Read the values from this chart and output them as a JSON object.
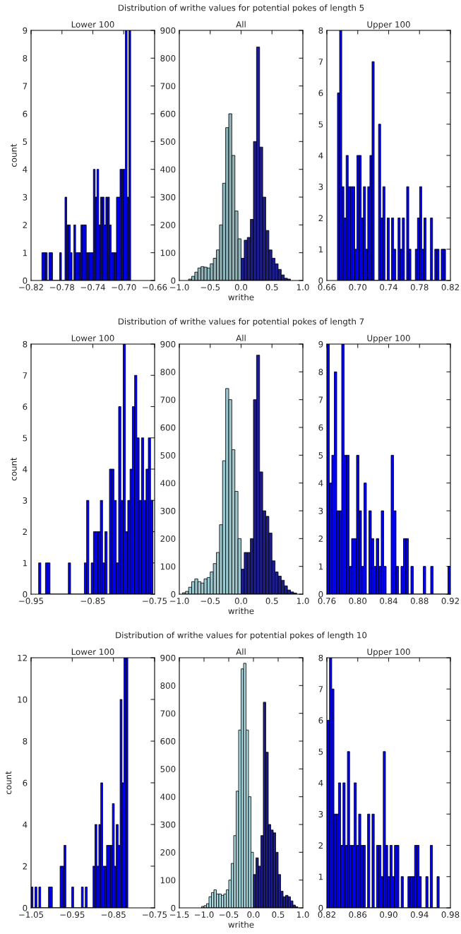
{
  "chart_data": [
    {
      "type": "histogram",
      "title": "Lower 100",
      "ylabel": "count",
      "color": "#0000ff",
      "bins": [
        -0.806,
        -0.8037,
        -0.8014,
        -0.7991,
        -0.7968,
        -0.7945,
        -0.7922,
        -0.7899,
        -0.7876,
        -0.7853,
        -0.783,
        -0.7807,
        -0.7784,
        -0.7761,
        -0.7738,
        -0.7715,
        -0.7692,
        -0.7669,
        -0.7646,
        -0.7623,
        -0.76,
        -0.7577,
        -0.7554,
        -0.7531,
        -0.7508,
        -0.7485,
        -0.7462,
        -0.7439,
        -0.7416,
        -0.7393,
        -0.737,
        -0.7347,
        -0.7324,
        -0.7301,
        -0.7278,
        -0.7255,
        -0.7232,
        -0.7209,
        -0.7186,
        -0.7163,
        -0.714,
        -0.7117,
        -0.7094,
        -0.7071,
        -0.7048,
        -0.7025,
        -0.7002,
        -0.6979,
        -0.6956,
        -0.6933,
        -0.691
      ],
      "values": [
        1,
        1,
        1,
        0,
        1,
        1,
        0,
        0,
        0,
        0,
        1,
        0,
        0,
        3,
        2,
        2,
        1,
        0,
        2,
        1,
        1,
        1,
        2,
        2,
        2,
        1,
        1,
        1,
        1,
        4,
        3,
        4,
        2,
        3,
        3,
        2,
        3,
        3,
        2,
        1,
        1,
        1,
        3,
        3,
        4,
        4,
        4,
        9,
        3,
        9
      ],
      "xlim": [
        -0.82,
        -0.66
      ],
      "xticks": [
        {
          "value": -0.82,
          "label": "−0.82"
        },
        {
          "value": -0.78,
          "label": "−0.78"
        },
        {
          "value": -0.74,
          "label": "−0.74"
        },
        {
          "value": -0.7,
          "label": "−0.70"
        },
        {
          "value": -0.66,
          "label": "−0.66"
        }
      ],
      "ylim": [
        0,
        9
      ],
      "yticks": [
        0,
        1,
        2,
        3,
        4,
        5,
        6,
        7,
        8,
        9
      ]
    },
    {
      "type": "histogram",
      "title": "All",
      "xlabel": "writhe",
      "annotations": [
        "Distribution of writhe values for potential pokes of length 5"
      ],
      "bins": [
        -0.85,
        -0.8,
        -0.75,
        -0.7,
        -0.65,
        -0.6,
        -0.55,
        -0.5,
        -0.45,
        -0.4,
        -0.35,
        -0.3,
        -0.25,
        -0.2,
        -0.15,
        -0.1,
        -0.05,
        0,
        0.05,
        0.1,
        0.15,
        0.2,
        0.25,
        0.3,
        0.35,
        0.4,
        0.45,
        0.5,
        0.55,
        0.6,
        0.65,
        0.7,
        0.75,
        0.8
      ],
      "series": [
        {
          "color": "#8fb5ba",
          "values": [
            5,
            15,
            30,
            45,
            50,
            48,
            45,
            60,
            80,
            110,
            200,
            350,
            550,
            600,
            450,
            250,
            150,
            null,
            null,
            null,
            null,
            null,
            null,
            null,
            null,
            null,
            null,
            null,
            null,
            null,
            null,
            null,
            null
          ]
        },
        {
          "color": "#1c1c8c",
          "values": [
            null,
            null,
            null,
            null,
            null,
            null,
            null,
            null,
            null,
            null,
            null,
            null,
            null,
            null,
            null,
            null,
            null,
            80,
            145,
            155,
            220,
            500,
            840,
            480,
            300,
            180,
            110,
            80,
            60,
            40,
            20,
            8,
            5
          ]
        }
      ],
      "xlim": [
        -1,
        1
      ],
      "xticks": [
        {
          "value": -1,
          "label": "−1.0"
        },
        {
          "value": -0.5,
          "label": "−0.5"
        },
        {
          "value": 0,
          "label": "0.0"
        },
        {
          "value": 0.5,
          "label": "0.5"
        },
        {
          "value": 1,
          "label": "1.0"
        }
      ],
      "ylim": [
        0,
        900
      ],
      "yticks": [
        0,
        100,
        200,
        300,
        400,
        500,
        600,
        700,
        800,
        900
      ]
    },
    {
      "type": "histogram",
      "title": "Upper 100",
      "color": "#0000ff",
      "bins": [
        0.6737,
        0.6765,
        0.6793,
        0.6821,
        0.6849,
        0.6877,
        0.6905,
        0.6933,
        0.6961,
        0.6989,
        0.7017,
        0.7045,
        0.7073,
        0.7101,
        0.7129,
        0.7157,
        0.7185,
        0.7213,
        0.7241,
        0.7269,
        0.7297,
        0.7325,
        0.7353,
        0.7381,
        0.7409,
        0.7437,
        0.7465,
        0.7493,
        0.7521,
        0.7549,
        0.7577,
        0.7605,
        0.7633,
        0.7661,
        0.7689,
        0.7717,
        0.7745,
        0.7773,
        0.7801,
        0.7829,
        0.7857,
        0.7885,
        0.7913,
        0.7941,
        0.7969,
        0.7997,
        0.8025,
        0.8053,
        0.8081,
        0.8109,
        0.8137
      ],
      "values": [
        6,
        8,
        3,
        2,
        4,
        3,
        3,
        3,
        1,
        4,
        4,
        2,
        3,
        1,
        3,
        4,
        7,
        0,
        0,
        5,
        2,
        3,
        0,
        2,
        0,
        2,
        1,
        0,
        2,
        1,
        2,
        0,
        3,
        1,
        0,
        0,
        1,
        2,
        3,
        1,
        2,
        0,
        0,
        2,
        0,
        1,
        1,
        0,
        1,
        1
      ],
      "xlim": [
        0.66,
        0.82
      ],
      "xticks": [
        {
          "value": 0.66,
          "label": "0.66"
        },
        {
          "value": 0.7,
          "label": "0.70"
        },
        {
          "value": 0.74,
          "label": "0.74"
        },
        {
          "value": 0.78,
          "label": "0.78"
        },
        {
          "value": 0.82,
          "label": "0.82"
        }
      ],
      "ylim": [
        0,
        8
      ],
      "yticks": [
        0,
        1,
        2,
        3,
        4,
        5,
        6,
        7,
        8
      ]
    },
    {
      "type": "histogram",
      "title": "Lower 100",
      "ylabel": "count",
      "color": "#0000ff",
      "bins": [
        -0.9378,
        -0.9341,
        -0.9304,
        -0.9267,
        -0.923,
        -0.9193,
        -0.9156,
        -0.9119,
        -0.9082,
        -0.9045,
        -0.9008,
        -0.8971,
        -0.8934,
        -0.8897,
        -0.886,
        -0.8823,
        -0.8786,
        -0.8749,
        -0.8712,
        -0.8675,
        -0.8638,
        -0.8601,
        -0.8564,
        -0.8527,
        -0.849,
        -0.8453,
        -0.8416,
        -0.8379,
        -0.8342,
        -0.8305,
        -0.8268,
        -0.8231,
        -0.8194,
        -0.8157,
        -0.812,
        -0.8083,
        -0.8046,
        -0.8009,
        -0.7972,
        -0.7935,
        -0.7898,
        -0.7861,
        -0.7824,
        -0.7787,
        -0.775,
        -0.7713,
        -0.7676,
        -0.7639,
        -0.7602,
        -0.7565,
        -0.7528
      ],
      "values": [
        1,
        0,
        0,
        1,
        1,
        0,
        0,
        0,
        0,
        0,
        0,
        0,
        0,
        1,
        0,
        0,
        0,
        0,
        0,
        0,
        1,
        3,
        0,
        1,
        2,
        2,
        2,
        3,
        1,
        2,
        0,
        4,
        4,
        3,
        1,
        6,
        3,
        8,
        2,
        3,
        4,
        6,
        7,
        5,
        3,
        5,
        3,
        4,
        5,
        3
      ],
      "xlim": [
        -0.95,
        -0.75
      ],
      "xticks": [
        {
          "value": -0.95,
          "label": "−0.95"
        },
        {
          "value": -0.85,
          "label": "−0.85"
        },
        {
          "value": -0.75,
          "label": "−0.75"
        }
      ],
      "ylim": [
        0,
        8
      ],
      "yticks": [
        0,
        1,
        2,
        3,
        4,
        5,
        6,
        7,
        8
      ]
    },
    {
      "type": "histogram",
      "title": "All",
      "xlabel": "writhe",
      "annotations": [
        "Distribution of writhe values for potential pokes of length 7"
      ],
      "bins": [
        -0.95,
        -0.9,
        -0.85,
        -0.8,
        -0.75,
        -0.7,
        -0.65,
        -0.6,
        -0.55,
        -0.5,
        -0.45,
        -0.4,
        -0.35,
        -0.3,
        -0.25,
        -0.2,
        -0.15,
        -0.1,
        -0.05,
        0,
        0.05,
        0.1,
        0.15,
        0.2,
        0.25,
        0.3,
        0.35,
        0.4,
        0.45,
        0.5,
        0.55,
        0.6,
        0.65,
        0.7,
        0.75,
        0.8,
        0.85,
        0.9
      ],
      "series": [
        {
          "color": "#9cc8cf",
          "values": [
            5,
            10,
            25,
            45,
            55,
            45,
            40,
            55,
            60,
            80,
            110,
            150,
            250,
            480,
            740,
            700,
            520,
            370,
            200,
            null,
            null,
            null,
            null,
            null,
            null,
            null,
            null,
            null,
            null,
            null,
            null,
            null,
            null,
            null,
            null,
            null,
            null
          ]
        },
        {
          "color": "#1c1c8c",
          "values": [
            null,
            null,
            null,
            null,
            null,
            null,
            null,
            null,
            null,
            null,
            null,
            null,
            null,
            null,
            null,
            null,
            null,
            null,
            null,
            90,
            150,
            150,
            200,
            700,
            860,
            440,
            300,
            280,
            220,
            120,
            80,
            65,
            50,
            30,
            15,
            8,
            4
          ]
        }
      ],
      "xlim": [
        -1,
        1
      ],
      "xticks": [
        {
          "value": -1,
          "label": "−1.0"
        },
        {
          "value": -0.5,
          "label": "−0.5"
        },
        {
          "value": 0,
          "label": "0.0"
        },
        {
          "value": 0.5,
          "label": "0.5"
        },
        {
          "value": 1,
          "label": "1.0"
        }
      ],
      "ylim": [
        0,
        900
      ],
      "yticks": [
        0,
        100,
        200,
        300,
        400,
        500,
        600,
        700,
        800,
        900
      ]
    },
    {
      "type": "histogram",
      "title": "Upper 100",
      "color": "#0000ff",
      "bins": [
        0.76,
        0.7632,
        0.7664,
        0.7696,
        0.7728,
        0.776,
        0.7792,
        0.7824,
        0.7856,
        0.7888,
        0.792,
        0.7952,
        0.7984,
        0.8016,
        0.8048,
        0.808,
        0.8112,
        0.8144,
        0.8176,
        0.8208,
        0.824,
        0.8272,
        0.8304,
        0.8336,
        0.8368,
        0.84,
        0.8432,
        0.8464,
        0.8496,
        0.8528,
        0.856,
        0.8592,
        0.8624,
        0.8656,
        0.8688,
        0.872,
        0.8752,
        0.8784,
        0.8816,
        0.8848,
        0.888,
        0.8912,
        0.8944,
        0.8976,
        0.9008,
        0.904,
        0.9072,
        0.9104,
        0.9136,
        0.9168,
        0.92
      ],
      "values": [
        9,
        4,
        5,
        8,
        3,
        3,
        9,
        5,
        5,
        1,
        2,
        2,
        5,
        3,
        1,
        4,
        0,
        3,
        2,
        1,
        2,
        1,
        3,
        1,
        0,
        0,
        5,
        3,
        1,
        0,
        1,
        2,
        2,
        0,
        1,
        0,
        0,
        0,
        0,
        1,
        0,
        0,
        1,
        0,
        0,
        0,
        0,
        0,
        0,
        1
      ],
      "xlim": [
        0.76,
        0.92
      ],
      "xticks": [
        {
          "value": 0.76,
          "label": "0.76"
        },
        {
          "value": 0.8,
          "label": "0.80"
        },
        {
          "value": 0.84,
          "label": "0.84"
        },
        {
          "value": 0.88,
          "label": "0.88"
        },
        {
          "value": 0.92,
          "label": "0.92"
        }
      ],
      "ylim": [
        0,
        9
      ],
      "yticks": [
        0,
        1,
        2,
        3,
        4,
        5,
        6,
        7,
        8,
        9
      ]
    },
    {
      "type": "histogram",
      "title": "Lower 100",
      "ylabel": "count",
      "color": "#0000ff",
      "bins": [
        -1.05,
        -1.0453,
        -1.0406,
        -1.0359,
        -1.0312,
        -1.0265,
        -1.0218,
        -1.0171,
        -1.0124,
        -1.0077,
        -1.003,
        -0.9983,
        -0.9936,
        -0.9889,
        -0.9842,
        -0.9795,
        -0.9748,
        -0.9701,
        -0.9654,
        -0.9607,
        -0.956,
        -0.9513,
        -0.9466,
        -0.9419,
        -0.9372,
        -0.9325,
        -0.9278,
        -0.9231,
        -0.9184,
        -0.9137,
        -0.909,
        -0.9043,
        -0.8996,
        -0.8949,
        -0.8902,
        -0.8855,
        -0.8808,
        -0.8761,
        -0.8714,
        -0.8667,
        -0.862,
        -0.8573,
        -0.8526,
        -0.8479,
        -0.8432,
        -0.8385,
        -0.8338,
        -0.8291,
        -0.8244,
        -0.8197,
        -0.815
      ],
      "values": [
        1,
        0,
        1,
        0,
        1,
        0,
        0,
        0,
        0,
        1,
        1,
        0,
        0,
        0,
        0,
        2,
        2,
        3,
        0,
        0,
        0,
        1,
        0,
        0,
        0,
        0,
        1,
        0,
        1,
        0,
        0,
        0,
        2,
        4,
        2,
        4,
        6,
        2,
        2,
        3,
        3,
        3,
        5,
        2,
        4,
        3,
        10,
        6,
        12,
        12
      ],
      "xlim": [
        -1.05,
        -0.75
      ],
      "xticks": [
        {
          "value": -1.05,
          "label": "−1.05"
        },
        {
          "value": -0.95,
          "label": "−0.95"
        },
        {
          "value": -0.85,
          "label": "−0.85"
        },
        {
          "value": -0.75,
          "label": "−0.75"
        }
      ],
      "ylim": [
        0,
        12
      ],
      "yticks": [
        0,
        2,
        4,
        6,
        8,
        10,
        12
      ]
    },
    {
      "type": "histogram",
      "title": "All",
      "xlabel": "writhe",
      "annotations": [
        "Distribution of writhe values for potential pokes of length 10"
      ],
      "bins": [
        -1.05,
        -1.0,
        -0.95,
        -0.9,
        -0.85,
        -0.8,
        -0.75,
        -0.7,
        -0.65,
        -0.6,
        -0.55,
        -0.5,
        -0.45,
        -0.4,
        -0.35,
        -0.3,
        -0.25,
        -0.2,
        -0.15,
        -0.1,
        -0.05,
        0,
        0.05,
        0.1,
        0.15,
        0.2,
        0.25,
        0.3,
        0.35,
        0.4,
        0.45,
        0.5,
        0.55,
        0.6,
        0.65,
        0.7,
        0.75,
        0.8,
        0.85,
        0.9
      ],
      "series": [
        {
          "color": "#a8d8e0",
          "values": [
            5,
            8,
            15,
            40,
            55,
            65,
            50,
            50,
            45,
            50,
            65,
            100,
            160,
            260,
            420,
            640,
            860,
            880,
            640,
            400,
            200,
            null,
            null,
            null,
            null,
            null,
            null,
            null,
            null,
            null,
            null,
            null,
            null,
            null,
            null,
            null,
            null,
            null,
            null
          ]
        },
        {
          "color": "#1c1c8c",
          "values": [
            null,
            null,
            null,
            null,
            null,
            null,
            null,
            null,
            null,
            null,
            null,
            null,
            null,
            null,
            null,
            null,
            null,
            null,
            null,
            null,
            null,
            120,
            180,
            150,
            260,
            740,
            560,
            300,
            280,
            270,
            200,
            120,
            60,
            40,
            45,
            40,
            25,
            10,
            4
          ]
        }
      ],
      "xlim": [
        -1.5,
        1
      ],
      "xticks": [
        {
          "value": -1.5,
          "label": "−1.5"
        },
        {
          "value": -1,
          "label": "−1.0"
        },
        {
          "value": -0.5,
          "label": "−0.5"
        },
        {
          "value": 0,
          "label": "0.0"
        },
        {
          "value": 0.5,
          "label": "0.5"
        },
        {
          "value": 1,
          "label": "1.0"
        }
      ],
      "ylim": [
        0,
        900
      ],
      "yticks": [
        0,
        100,
        200,
        300,
        400,
        500,
        600,
        700,
        800,
        900
      ]
    },
    {
      "type": "histogram",
      "title": "Upper 100",
      "color": "#0000ff",
      "bins": [
        0.8205,
        0.8234,
        0.8263,
        0.8292,
        0.8321,
        0.835,
        0.8379,
        0.8408,
        0.8437,
        0.8466,
        0.8495,
        0.8524,
        0.8553,
        0.8582,
        0.8611,
        0.864,
        0.8669,
        0.8698,
        0.8727,
        0.8756,
        0.8785,
        0.8814,
        0.8843,
        0.8872,
        0.8901,
        0.893,
        0.8959,
        0.8988,
        0.9017,
        0.9046,
        0.9075,
        0.9104,
        0.9133,
        0.9162,
        0.9191,
        0.922,
        0.9249,
        0.9278,
        0.9307,
        0.9336,
        0.9365,
        0.9394,
        0.9423,
        0.9452,
        0.9481,
        0.951,
        0.9539,
        0.9568,
        0.9597,
        0.9626,
        0.9655
      ],
      "values": [
        6,
        8,
        7,
        3,
        3,
        4,
        2,
        4,
        2,
        5,
        2,
        2,
        4,
        2,
        3,
        2,
        2,
        0,
        3,
        0,
        3,
        0,
        2,
        2,
        1,
        5,
        2,
        1,
        2,
        1,
        2,
        2,
        0,
        1,
        0,
        0,
        1,
        1,
        1,
        2,
        2,
        1,
        0,
        0,
        1,
        0,
        2,
        0,
        0,
        1
      ],
      "xlim": [
        0.82,
        0.98
      ],
      "xticks": [
        {
          "value": 0.82,
          "label": "0.82"
        },
        {
          "value": 0.86,
          "label": "0.86"
        },
        {
          "value": 0.9,
          "label": "0.90"
        },
        {
          "value": 0.94,
          "label": "0.94"
        },
        {
          "value": 0.98,
          "label": "0.98"
        }
      ],
      "ylim": [
        0,
        8
      ],
      "yticks": [
        0,
        1,
        2,
        3,
        4,
        5,
        6,
        7,
        8
      ]
    }
  ]
}
